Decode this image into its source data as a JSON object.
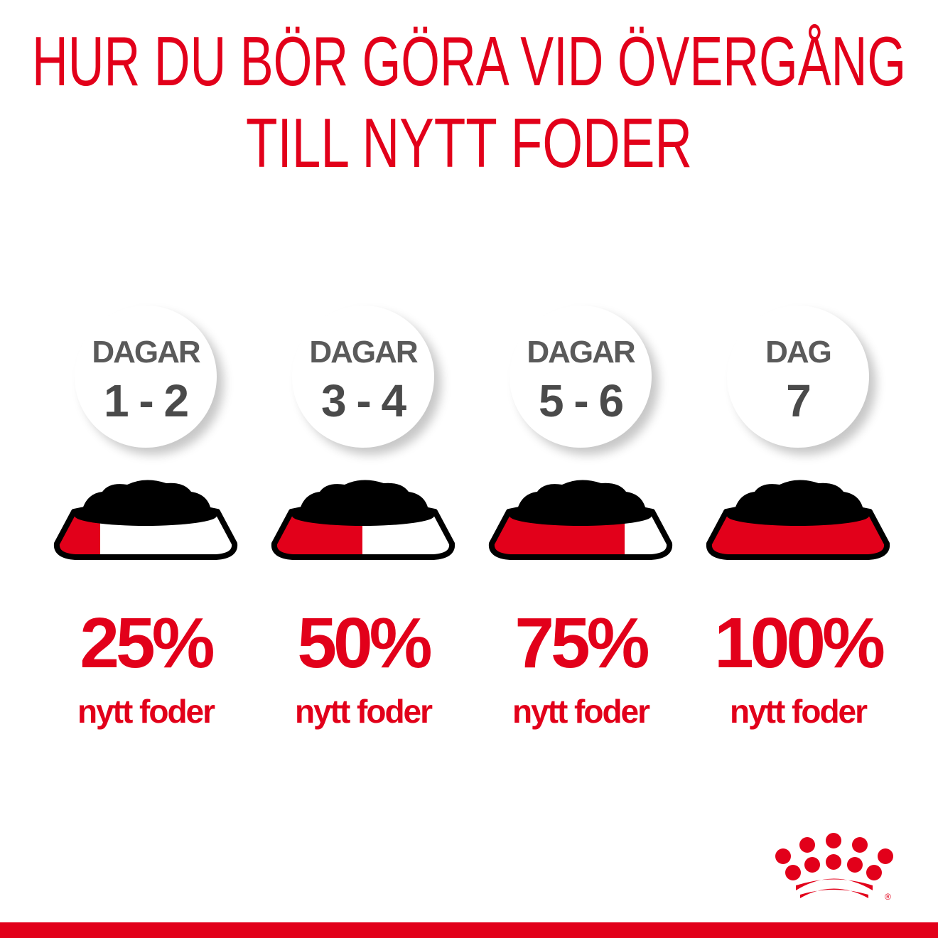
{
  "title": {
    "line1": "HUR DU BÖR GÖRA VID ÖVERGÅNG",
    "line2": "TILL NYTT FODER"
  },
  "colors": {
    "brand_red": "#e2001a",
    "circle_text": "#4a4a4a"
  },
  "steps": [
    {
      "label": "DAGAR",
      "days": "1 - 2",
      "percent": "25%",
      "new_food_fraction": 0.25,
      "caption": "nytt foder"
    },
    {
      "label": "DAGAR",
      "days": "3 - 4",
      "percent": "50%",
      "new_food_fraction": 0.5,
      "caption": "nytt foder"
    },
    {
      "label": "DAGAR",
      "days": "5 - 6",
      "percent": "75%",
      "new_food_fraction": 0.75,
      "caption": "nytt foder"
    },
    {
      "label": "DAG",
      "days": "7",
      "percent": "100%",
      "new_food_fraction": 1.0,
      "caption": "nytt foder"
    }
  ],
  "logo": {
    "name": "crown-logo",
    "registered": "®"
  }
}
